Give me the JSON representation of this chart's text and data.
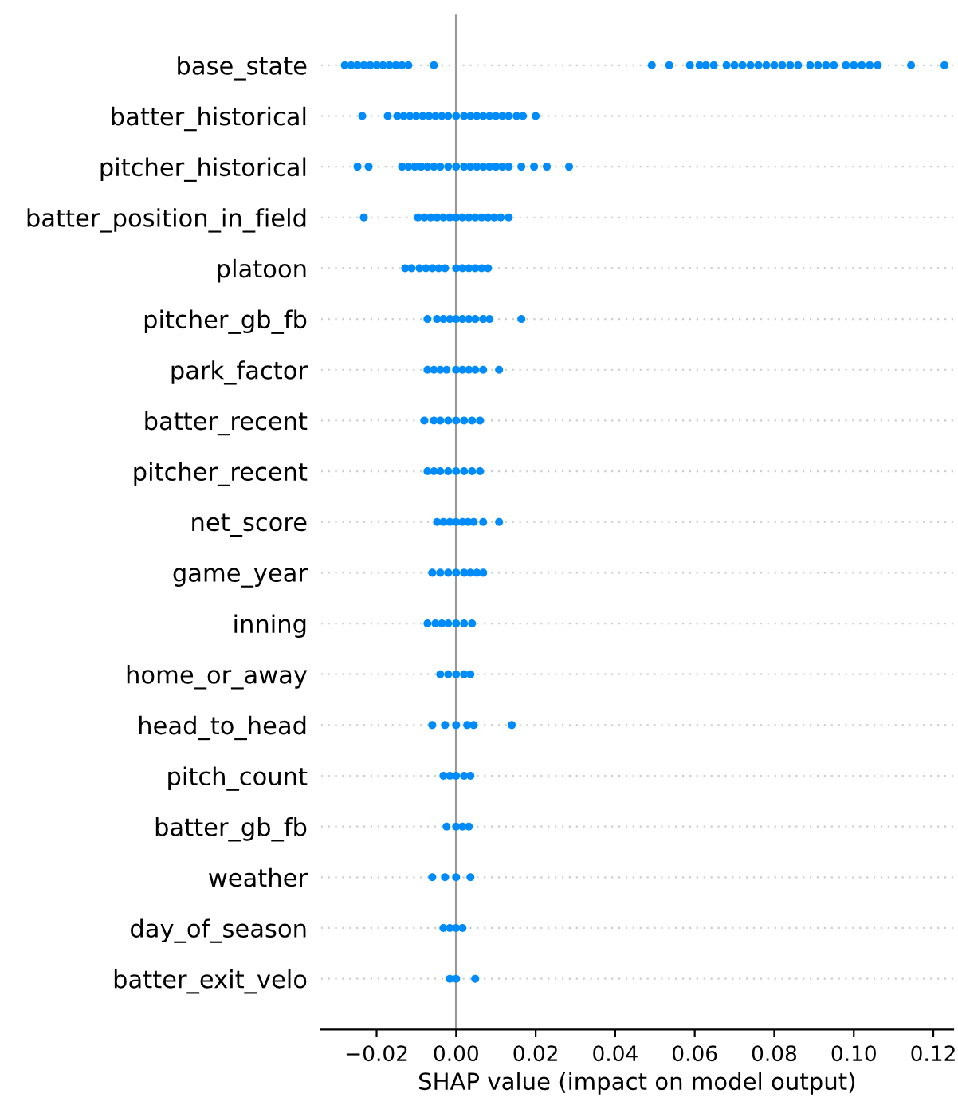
{
  "chart_data": {
    "type": "scatter",
    "orientation": "horizontal",
    "xlabel": "SHAP value (impact on model output)",
    "color": "#008bfb",
    "marker": "circle",
    "grid": "y",
    "categories": [
      "base_state",
      "batter_historical",
      "pitcher_historical",
      "batter_position_in_field",
      "platoon",
      "pitcher_gb_fb",
      "park_factor",
      "batter_recent",
      "pitcher_recent",
      "net_score",
      "game_year",
      "inning",
      "home_or_away",
      "head_to_head",
      "pitch_count",
      "batter_gb_fb",
      "weather",
      "day_of_season",
      "batter_exit_velo"
    ],
    "xlim": [
      -0.034,
      0.125
    ],
    "xticks": [
      {
        "value": -0.02,
        "label": "−0.02"
      },
      {
        "value": 0,
        "label": "0.00"
      },
      {
        "value": 0.02,
        "label": "0.02"
      },
      {
        "value": 0.04,
        "label": "0.04"
      },
      {
        "value": 0.06,
        "label": "0.06"
      },
      {
        "value": 0.08,
        "label": "0.08"
      },
      {
        "value": 0.1,
        "label": "0.10"
      },
      {
        "value": 0.12,
        "label": "0.12"
      }
    ],
    "ref_lines": [
      {
        "axis": "x",
        "value": 0,
        "color": "#999999"
      }
    ],
    "series": [
      {
        "x": [
          "base_state",
          "base_state",
          "base_state",
          "base_state",
          "base_state",
          "base_state",
          "base_state",
          "base_state",
          "base_state",
          "base_state",
          "base_state",
          "base_state",
          "base_state",
          "base_state",
          "base_state",
          "base_state",
          "base_state",
          "base_state",
          "base_state",
          "base_state",
          "base_state",
          "base_state",
          "base_state",
          "base_state",
          "base_state",
          "base_state",
          "base_state",
          "base_state",
          "base_state",
          "base_state",
          "base_state",
          "base_state",
          "base_state",
          "base_state",
          "base_state",
          "base_state",
          "base_state",
          "base_state",
          "base_state"
        ],
        "values": [
          -0.028,
          -0.0264,
          -0.0248,
          -0.0232,
          -0.0216,
          -0.02,
          -0.0184,
          -0.0168,
          -0.0152,
          -0.0136,
          -0.012,
          -0.0056,
          0.0492,
          0.0536,
          0.0588,
          0.0612,
          0.0628,
          0.0648,
          0.068,
          0.07,
          0.072,
          0.074,
          0.076,
          0.078,
          0.08,
          0.082,
          0.084,
          0.086,
          0.089,
          0.091,
          0.093,
          0.095,
          0.098,
          0.1,
          0.102,
          0.104,
          0.106,
          0.1144,
          0.1228
        ]
      },
      {
        "x": [
          "batter_historical",
          "batter_historical",
          "batter_historical",
          "batter_historical",
          "batter_historical",
          "batter_historical",
          "batter_historical",
          "batter_historical",
          "batter_historical",
          "batter_historical",
          "batter_historical",
          "batter_historical",
          "batter_historical",
          "batter_historical",
          "batter_historical",
          "batter_historical",
          "batter_historical",
          "batter_historical",
          "batter_historical",
          "batter_historical",
          "batter_historical",
          "batter_historical",
          "batter_historical"
        ],
        "values": [
          -0.0236,
          -0.0172,
          -0.0148,
          -0.0132,
          -0.0116,
          -0.01,
          -0.0084,
          -0.0068,
          -0.0052,
          -0.0036,
          -0.002,
          0,
          0.002,
          0.0036,
          0.0052,
          0.0068,
          0.0084,
          0.01,
          0.0116,
          0.0132,
          0.0152,
          0.0168,
          0.02
        ]
      },
      {
        "x": [
          "pitcher_historical",
          "pitcher_historical",
          "pitcher_historical",
          "pitcher_historical",
          "pitcher_historical",
          "pitcher_historical",
          "pitcher_historical",
          "pitcher_historical",
          "pitcher_historical",
          "pitcher_historical",
          "pitcher_historical",
          "pitcher_historical",
          "pitcher_historical",
          "pitcher_historical",
          "pitcher_historical",
          "pitcher_historical",
          "pitcher_historical",
          "pitcher_historical",
          "pitcher_historical",
          "pitcher_historical",
          "pitcher_historical",
          "pitcher_historical",
          "pitcher_historical"
        ],
        "values": [
          -0.0248,
          -0.022,
          -0.0136,
          -0.012,
          -0.0104,
          -0.0088,
          -0.0072,
          -0.0056,
          -0.004,
          -0.002,
          0,
          0.002,
          0.0036,
          0.0052,
          0.0068,
          0.0084,
          0.01,
          0.0116,
          0.0132,
          0.0164,
          0.0196,
          0.0228,
          0.0284
        ]
      },
      {
        "x": [
          "batter_position_in_field",
          "batter_position_in_field",
          "batter_position_in_field",
          "batter_position_in_field",
          "batter_position_in_field",
          "batter_position_in_field",
          "batter_position_in_field",
          "batter_position_in_field",
          "batter_position_in_field",
          "batter_position_in_field",
          "batter_position_in_field",
          "batter_position_in_field",
          "batter_position_in_field",
          "batter_position_in_field",
          "batter_position_in_field",
          "batter_position_in_field"
        ],
        "values": [
          -0.0232,
          -0.0096,
          -0.008,
          -0.0064,
          -0.0048,
          -0.0032,
          -0.0016,
          0,
          0.0016,
          0.0032,
          0.0048,
          0.0064,
          0.008,
          0.0096,
          0.0112,
          0.0132
        ]
      },
      {
        "x": [
          "platoon",
          "platoon",
          "platoon",
          "platoon",
          "platoon",
          "platoon",
          "platoon",
          "platoon",
          "platoon",
          "platoon",
          "platoon",
          "platoon",
          "platoon"
        ],
        "values": [
          -0.0128,
          -0.0112,
          -0.0092,
          -0.0076,
          -0.006,
          -0.0044,
          -0.0028,
          0,
          0.0016,
          0.0032,
          0.0048,
          0.0064,
          0.008
        ]
      },
      {
        "x": [
          "pitcher_gb_fb",
          "pitcher_gb_fb",
          "pitcher_gb_fb",
          "pitcher_gb_fb",
          "pitcher_gb_fb",
          "pitcher_gb_fb",
          "pitcher_gb_fb",
          "pitcher_gb_fb",
          "pitcher_gb_fb",
          "pitcher_gb_fb",
          "pitcher_gb_fb"
        ],
        "values": [
          -0.0072,
          -0.0048,
          -0.0032,
          -0.0016,
          0,
          0.0016,
          0.0032,
          0.0048,
          0.0068,
          0.0084,
          0.0164
        ]
      },
      {
        "x": [
          "park_factor",
          "park_factor",
          "park_factor",
          "park_factor",
          "park_factor",
          "park_factor",
          "park_factor",
          "park_factor",
          "park_factor",
          "park_factor"
        ],
        "values": [
          -0.0072,
          -0.0056,
          -0.004,
          -0.0024,
          0,
          0.0016,
          0.0032,
          0.0048,
          0.0068,
          0.0108
        ]
      },
      {
        "x": [
          "batter_recent",
          "batter_recent",
          "batter_recent",
          "batter_recent",
          "batter_recent",
          "batter_recent",
          "batter_recent",
          "batter_recent"
        ],
        "values": [
          -0.008,
          -0.0056,
          -0.004,
          -0.002,
          0,
          0.002,
          0.004,
          0.006
        ]
      },
      {
        "x": [
          "pitcher_recent",
          "pitcher_recent",
          "pitcher_recent",
          "pitcher_recent",
          "pitcher_recent",
          "pitcher_recent",
          "pitcher_recent",
          "pitcher_recent"
        ],
        "values": [
          -0.0072,
          -0.0056,
          -0.004,
          -0.002,
          0,
          0.002,
          0.004,
          0.006
        ]
      },
      {
        "x": [
          "net_score",
          "net_score",
          "net_score",
          "net_score",
          "net_score",
          "net_score",
          "net_score",
          "net_score",
          "net_score"
        ],
        "values": [
          -0.0048,
          -0.0032,
          -0.0016,
          0,
          0.0016,
          0.003,
          0.0044,
          0.0068,
          0.0108
        ]
      },
      {
        "x": [
          "game_year",
          "game_year",
          "game_year",
          "game_year",
          "game_year",
          "game_year",
          "game_year",
          "game_year"
        ],
        "values": [
          -0.006,
          -0.004,
          -0.002,
          0,
          0.002,
          0.0036,
          0.0052,
          0.0068
        ]
      },
      {
        "x": [
          "inning",
          "inning",
          "inning",
          "inning",
          "inning",
          "inning",
          "inning"
        ],
        "values": [
          -0.0072,
          -0.0052,
          -0.0036,
          -0.002,
          0,
          0.002,
          0.004
        ]
      },
      {
        "x": [
          "home_or_away",
          "home_or_away",
          "home_or_away",
          "home_or_away",
          "home_or_away"
        ],
        "values": [
          -0.004,
          -0.002,
          0,
          0.002,
          0.0036
        ]
      },
      {
        "x": [
          "head_to_head",
          "head_to_head",
          "head_to_head",
          "head_to_head",
          "head_to_head",
          "head_to_head"
        ],
        "values": [
          -0.006,
          -0.0028,
          0,
          0.0028,
          0.0044,
          0.014
        ]
      },
      {
        "x": [
          "pitch_count",
          "pitch_count",
          "pitch_count",
          "pitch_count",
          "pitch_count"
        ],
        "values": [
          -0.0032,
          -0.0016,
          0,
          0.002,
          0.0036
        ]
      },
      {
        "x": [
          "batter_gb_fb",
          "batter_gb_fb",
          "batter_gb_fb",
          "batter_gb_fb"
        ],
        "values": [
          -0.0024,
          0,
          0.0016,
          0.0032
        ]
      },
      {
        "x": [
          "weather",
          "weather",
          "weather",
          "weather"
        ],
        "values": [
          -0.006,
          -0.0028,
          0,
          0.0036
        ]
      },
      {
        "x": [
          "day_of_season",
          "day_of_season",
          "day_of_season",
          "day_of_season"
        ],
        "values": [
          -0.0032,
          -0.0016,
          0,
          0.0016
        ]
      },
      {
        "x": [
          "batter_exit_velo",
          "batter_exit_velo",
          "batter_exit_velo"
        ],
        "values": [
          -0.0016,
          0,
          0.0048
        ]
      }
    ]
  }
}
